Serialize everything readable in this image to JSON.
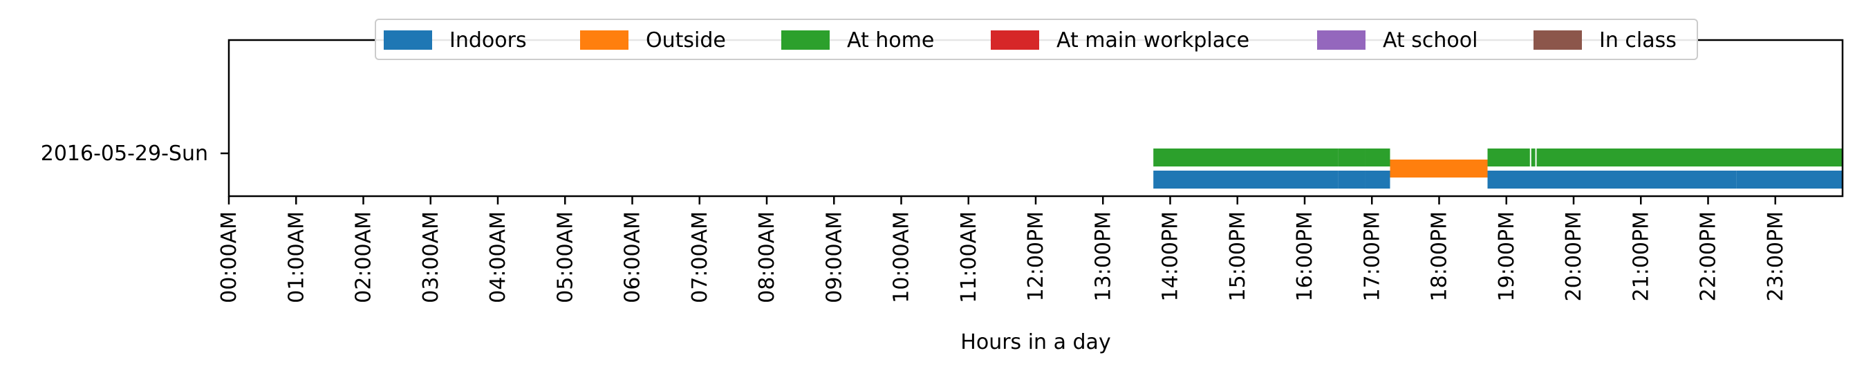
{
  "chart_data": {
    "type": "timeline",
    "xlabel": "Hours in a day",
    "xlim": [
      0,
      24
    ],
    "x_tick_labels": [
      "00:00AM",
      "01:00AM",
      "02:00AM",
      "03:00AM",
      "04:00AM",
      "05:00AM",
      "06:00AM",
      "07:00AM",
      "08:00AM",
      "09:00AM",
      "10:00AM",
      "11:00AM",
      "12:00PM",
      "13:00PM",
      "14:00PM",
      "15:00PM",
      "16:00PM",
      "17:00PM",
      "18:00PM",
      "19:00PM",
      "20:00PM",
      "21:00PM",
      "22:00PM",
      "23:00PM"
    ],
    "y_categories": [
      "2016-05-29-Sun"
    ],
    "legend": {
      "placement": "top-center",
      "entries": [
        {
          "name": "Indoors",
          "color": "#1f77b4"
        },
        {
          "name": "Outside",
          "color": "#ff7f0e"
        },
        {
          "name": "At home",
          "color": "#2ca02c"
        },
        {
          "name": "At main workplace",
          "color": "#d62728"
        },
        {
          "name": "At school",
          "color": "#9467bd"
        },
        {
          "name": "In class",
          "color": "#8c564b"
        }
      ]
    },
    "series": [
      {
        "name": "Indoors",
        "color": "#1f77b4",
        "lane": 0,
        "intervals": [
          [
            13.75,
            16.5
          ],
          [
            16.5,
            16.9
          ],
          [
            16.9,
            17.27
          ],
          [
            18.72,
            22.42
          ],
          [
            22.42,
            24.0
          ]
        ]
      },
      {
        "name": "Outside",
        "color": "#ff7f0e",
        "lane": 1,
        "intervals": [
          [
            17.27,
            18.72
          ]
        ]
      },
      {
        "name": "At home",
        "color": "#2ca02c",
        "lane": 2,
        "intervals": [
          [
            13.75,
            16.5
          ],
          [
            16.5,
            16.9
          ],
          [
            16.9,
            17.27
          ],
          [
            18.72,
            19.35
          ],
          [
            19.37,
            19.43
          ],
          [
            19.45,
            24.0
          ]
        ]
      }
    ]
  }
}
